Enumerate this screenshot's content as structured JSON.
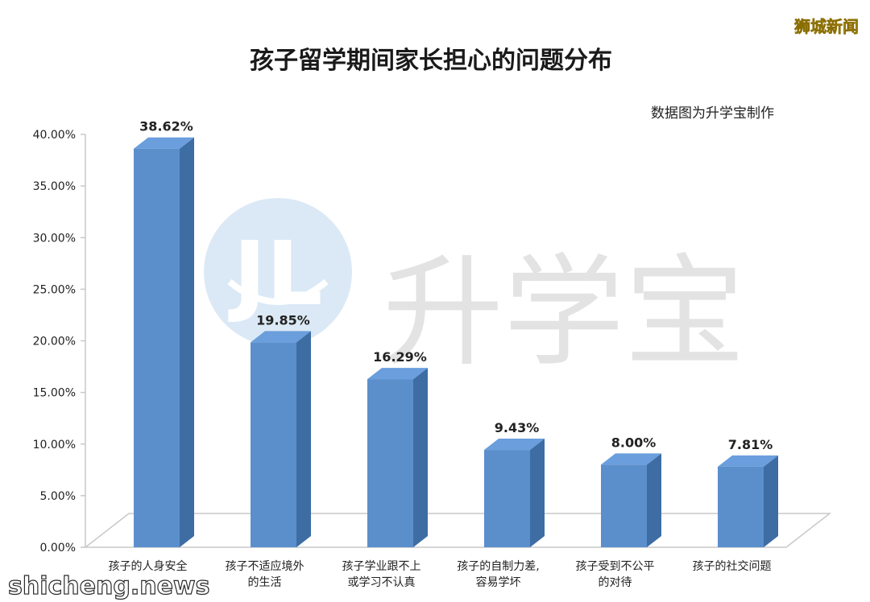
{
  "corner_badge": "狮城新闻",
  "footer_site": "shicheng.news",
  "watermark": {
    "text": "升学宝"
  },
  "credit": "数据图为升学宝制作",
  "colors": {
    "bar_front": "#5b8fcc",
    "bar_side": "#3d6da3",
    "bar_top": "#6a9edc",
    "axis": "#c8c8c8"
  },
  "chart_data": {
    "type": "bar",
    "title": "孩子留学期间家长担心的问题分布",
    "xlabel": "",
    "ylabel": "",
    "ylim": [
      0,
      40
    ],
    "yticks": [
      "0.00%",
      "5.00%",
      "10.00%",
      "15.00%",
      "20.00%",
      "25.00%",
      "30.00%",
      "35.00%",
      "40.00%"
    ],
    "categories": [
      [
        "孩子的人身安全"
      ],
      [
        "孩子不适应境外",
        "的生活"
      ],
      [
        "孩子学业跟不上",
        "或学习不认真"
      ],
      [
        "孩子的自制力差,",
        "容易学坏"
      ],
      [
        "孩子受到不公平",
        "的对待"
      ],
      [
        "孩子的社交问题"
      ]
    ],
    "values": [
      38.62,
      19.85,
      16.29,
      9.43,
      8.0,
      7.81
    ],
    "data_labels": [
      "38.62%",
      "19.85%",
      "16.29%",
      "9.43%",
      "8.00%",
      "7.81%"
    ],
    "grid": false,
    "legend": "none"
  }
}
